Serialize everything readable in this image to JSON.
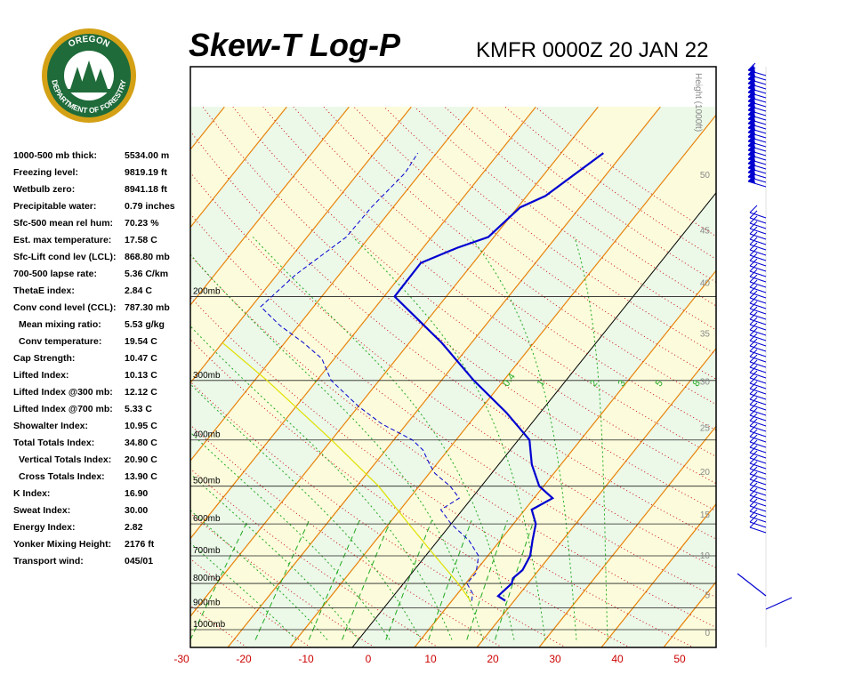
{
  "header": {
    "title": "Skew-T Log-P",
    "station_time": "KMFR 0000Z 20 JAN 22"
  },
  "logo": {
    "top_text": "OREGON",
    "bottom_text": "DEPARTMENT OF FORESTRY"
  },
  "indices": [
    {
      "label": "1000-500 mb thick:",
      "value": "5534.00 m"
    },
    {
      "label": "Freezing level:",
      "value": "9819.19 ft"
    },
    {
      "label": "Wetbulb zero:",
      "value": "8941.18 ft"
    },
    {
      "label": "Precipitable water:",
      "value": "0.79 inches"
    },
    {
      "label": "Sfc-500 mean rel hum:",
      "value": "70.23 %"
    },
    {
      "label": "Est. max temperature:",
      "value": "17.58 C"
    },
    {
      "label": "Sfc-Lift cond lev (LCL):",
      "value": "868.80 mb"
    },
    {
      "label": "700-500 lapse rate:",
      "value": "5.36 C/km"
    },
    {
      "label": "ThetaE index:",
      "value": "2.84 C"
    },
    {
      "label": "Conv cond level (CCL):",
      "value": "787.30 mb"
    },
    {
      "label": "Mean mixing ratio:",
      "value": "5.53 g/kg",
      "indent": true
    },
    {
      "label": "Conv temperature:",
      "value": "19.54 C",
      "indent": true
    },
    {
      "label": "Cap Strength:",
      "value": "10.47 C"
    },
    {
      "label": "Lifted Index:",
      "value": "10.13 C"
    },
    {
      "label": "Lifted Index @300 mb:",
      "value": "12.12 C"
    },
    {
      "label": "Lifted Index @700 mb:",
      "value": "5.33 C"
    },
    {
      "label": "Showalter Index:",
      "value": "10.95 C"
    },
    {
      "label": "Total Totals Index:",
      "value": "34.80 C"
    },
    {
      "label": "Vertical Totals Index:",
      "value": "20.90 C",
      "indent": true
    },
    {
      "label": "Cross Totals Index:",
      "value": "13.90 C",
      "indent": true
    },
    {
      "label": "K Index:",
      "value": "16.90"
    },
    {
      "label": "Sweat Index:",
      "value": "30.00"
    },
    {
      "label": "Energy Index:",
      "value": "2.82"
    },
    {
      "label": "Yonker Mixing Height:",
      "value": "2176 ft"
    },
    {
      "label": "Transport wind:",
      "value": "045/01"
    }
  ],
  "chart_data": {
    "type": "line",
    "title": "Skew-T Log-P",
    "subtitle": "KMFR 0000Z 20 JAN 22",
    "x_axis_unit": "°C",
    "x_ticks": [
      -30,
      -20,
      -10,
      0,
      10,
      20,
      30,
      40,
      50
    ],
    "x_tick_labels": [
      "-30",
      "-20",
      "-10",
      "0",
      "10",
      "20",
      "30",
      "40",
      "50"
    ],
    "pressure_levels_mb": [
      200,
      300,
      400,
      500,
      600,
      700,
      800,
      900,
      1000
    ],
    "pressure_labels": [
      "200mb",
      "300mb",
      "400mb",
      "500mb",
      "600mb",
      "700mb",
      "800mb",
      "900mb",
      "1000mb"
    ],
    "height_axis_title": "Height (1000ft)",
    "height_ticks_kft": [
      0,
      5,
      10,
      15,
      20,
      25,
      30,
      35,
      40,
      45,
      50
    ],
    "mixing_ratio_labels": [
      "0.4",
      "1",
      "2",
      "3",
      "5",
      "8"
    ],
    "y_scale": "log",
    "grid": true,
    "colors": {
      "temperature": "#0000d0",
      "dewpoint": "#0000d0",
      "parcel": "#e0e000",
      "isotherm": "#e8820a",
      "dry_adiabat": "#cc1111",
      "moist_adiabat": "#22aa22",
      "mixing_ratio": "#22aa22",
      "isobar": "#000000",
      "band_green": "#ecf8e8",
      "band_yellow": "#fcfcdc",
      "height_tick": "#888888",
      "x_tick_label": "#cc0000"
    },
    "series": [
      {
        "values": [
          {
            "p": 870,
            "t": 18.6
          },
          {
            "p": 850,
            "t": 16.8
          },
          {
            "p": 800,
            "t": 17.4
          },
          {
            "p": 780,
            "t": 16.9
          },
          {
            "p": 750,
            "t": 17.4
          },
          {
            "p": 700,
            "t": 16.8
          },
          {
            "p": 650,
            "t": 15.2
          },
          {
            "p": 600,
            "t": 13.6
          },
          {
            "p": 560,
            "t": 11.1
          },
          {
            "p": 530,
            "t": 13.0
          },
          {
            "p": 500,
            "t": 9.3
          },
          {
            "p": 450,
            "t": 5.3
          },
          {
            "p": 400,
            "t": 1.8
          },
          {
            "p": 350,
            "t": -5.5
          },
          {
            "p": 300,
            "t": -14.8
          },
          {
            "p": 250,
            "t": -24.8
          },
          {
            "p": 200,
            "t": -38.3
          },
          {
            "p": 170,
            "t": -38.4
          },
          {
            "p": 158,
            "t": -34.5
          },
          {
            "p": 150,
            "t": -30.9
          },
          {
            "p": 130,
            "t": -29.6
          },
          {
            "p": 123,
            "t": -27.0
          },
          {
            "p": 100,
            "t": -23.2
          }
        ]
      },
      {
        "values": [
          {
            "p": 870,
            "t": 13.2
          },
          {
            "p": 840,
            "t": 12.4
          },
          {
            "p": 800,
            "t": 10.2
          },
          {
            "p": 760,
            "t": 10.3
          },
          {
            "p": 700,
            "t": 8.5
          },
          {
            "p": 650,
            "t": 5.0
          },
          {
            "p": 600,
            "t": 0.0
          },
          {
            "p": 560,
            "t": -3.5
          },
          {
            "p": 530,
            "t": -2.0
          },
          {
            "p": 500,
            "t": -5.0
          },
          {
            "p": 470,
            "t": -9.1
          },
          {
            "p": 450,
            "t": -11.1
          },
          {
            "p": 420,
            "t": -14.0
          },
          {
            "p": 400,
            "t": -17.0
          },
          {
            "p": 370,
            "t": -24.0
          },
          {
            "p": 340,
            "t": -30.0
          },
          {
            "p": 300,
            "t": -37.7
          },
          {
            "p": 270,
            "t": -42.0
          },
          {
            "p": 250,
            "t": -47.0
          },
          {
            "p": 230,
            "t": -53.0
          },
          {
            "p": 210,
            "t": -58.5
          },
          {
            "p": 180,
            "t": -57.0
          },
          {
            "p": 150,
            "t": -53.7
          },
          {
            "p": 130,
            "t": -53.5
          },
          {
            "p": 110,
            "t": -52.5
          },
          {
            "p": 100,
            "t": -53.0
          }
        ]
      },
      {
        "values": [
          {
            "p": 870,
            "t": 13.0
          },
          {
            "p": 800,
            "t": 8.8
          },
          {
            "p": 700,
            "t": 1.5
          },
          {
            "p": 600,
            "t": -6.8
          },
          {
            "p": 500,
            "t": -16.5
          },
          {
            "p": 400,
            "t": -30.0
          },
          {
            "p": 300,
            "t": -48.0
          },
          {
            "p": 250,
            "t": -60.0
          }
        ]
      }
    ]
  }
}
